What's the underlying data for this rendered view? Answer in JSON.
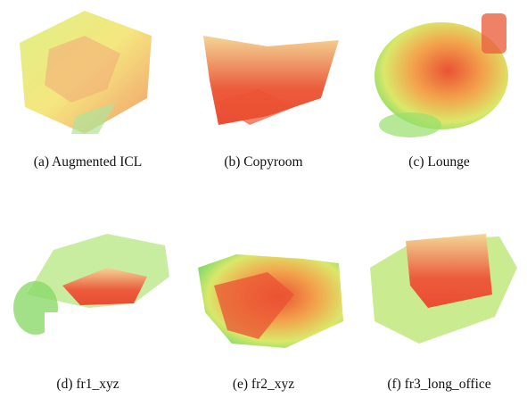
{
  "figure": {
    "subfigures": [
      {
        "caption": "(a) Augmented ICL"
      },
      {
        "caption": "(b) Copyroom"
      },
      {
        "caption": "(c) Lounge"
      },
      {
        "caption": "(d) fr1_xyz"
      },
      {
        "caption": "(e) fr2_xyz"
      },
      {
        "caption": "(f) fr3_long_office"
      }
    ]
  }
}
